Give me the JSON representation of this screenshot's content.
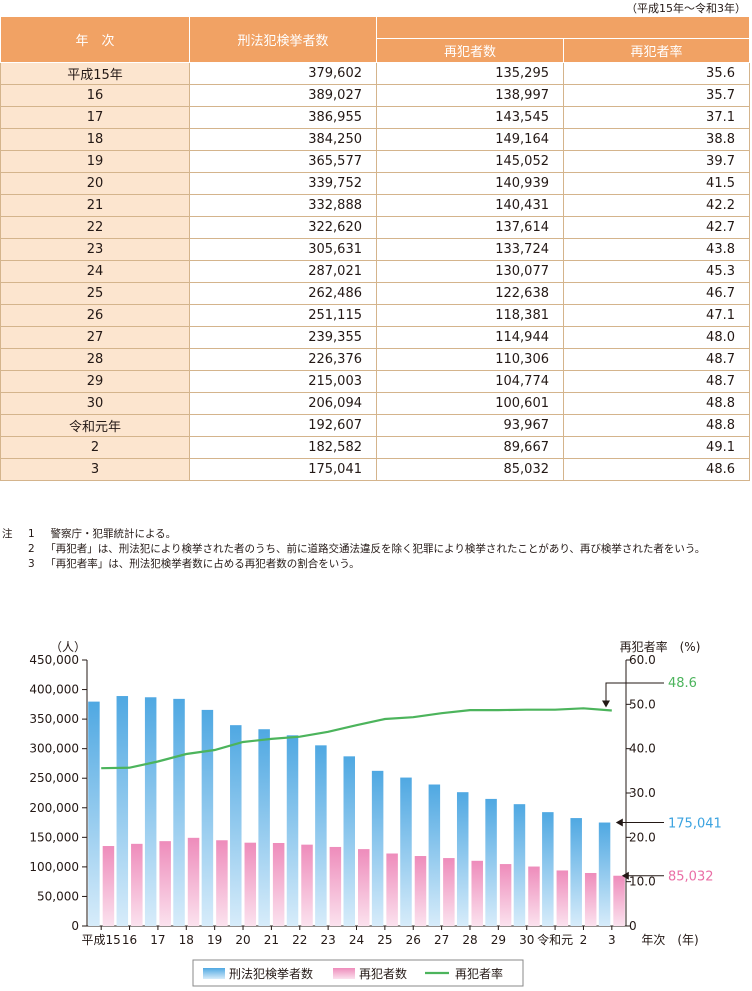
{
  "table": {
    "period_note": "（平成15年～令和3年）",
    "headers": {
      "year": "年　次",
      "arrests": "刑法犯検挙者数",
      "repeat": "再犯者数",
      "rate": "再犯者率"
    },
    "rows": [
      {
        "year": "平成15年",
        "arrests": "379,602",
        "repeat": "135,295",
        "rate": "35.6"
      },
      {
        "year": "16",
        "arrests": "389,027",
        "repeat": "138,997",
        "rate": "35.7"
      },
      {
        "year": "17",
        "arrests": "386,955",
        "repeat": "143,545",
        "rate": "37.1"
      },
      {
        "year": "18",
        "arrests": "384,250",
        "repeat": "149,164",
        "rate": "38.8"
      },
      {
        "year": "19",
        "arrests": "365,577",
        "repeat": "145,052",
        "rate": "39.7"
      },
      {
        "year": "20",
        "arrests": "339,752",
        "repeat": "140,939",
        "rate": "41.5"
      },
      {
        "year": "21",
        "arrests": "332,888",
        "repeat": "140,431",
        "rate": "42.2"
      },
      {
        "year": "22",
        "arrests": "322,620",
        "repeat": "137,614",
        "rate": "42.7"
      },
      {
        "year": "23",
        "arrests": "305,631",
        "repeat": "133,724",
        "rate": "43.8"
      },
      {
        "year": "24",
        "arrests": "287,021",
        "repeat": "130,077",
        "rate": "45.3"
      },
      {
        "year": "25",
        "arrests": "262,486",
        "repeat": "122,638",
        "rate": "46.7"
      },
      {
        "year": "26",
        "arrests": "251,115",
        "repeat": "118,381",
        "rate": "47.1"
      },
      {
        "year": "27",
        "arrests": "239,355",
        "repeat": "114,944",
        "rate": "48.0"
      },
      {
        "year": "28",
        "arrests": "226,376",
        "repeat": "110,306",
        "rate": "48.7"
      },
      {
        "year": "29",
        "arrests": "215,003",
        "repeat": "104,774",
        "rate": "48.7"
      },
      {
        "year": "30",
        "arrests": "206,094",
        "repeat": "100,601",
        "rate": "48.8"
      },
      {
        "year": "令和元年",
        "arrests": "192,607",
        "repeat": "93,967",
        "rate": "48.8"
      },
      {
        "year": "2",
        "arrests": "182,582",
        "repeat": "89,667",
        "rate": "49.1"
      },
      {
        "year": "3",
        "arrests": "175,041",
        "repeat": "85,032",
        "rate": "48.6"
      }
    ]
  },
  "notes": {
    "mark": "注",
    "items": [
      {
        "num": "1",
        "text": "警察庁・犯罪統計による。"
      },
      {
        "num": "2",
        "text": "「再犯者」は、刑法犯により検挙された者のうち、前に道路交通法違反を除く犯罪により検挙されたことがあり、再び検挙された者をいう。"
      },
      {
        "num": "3",
        "text": "「再犯者率」は、刑法犯検挙者数に占める再犯者数の割合をいう。"
      }
    ]
  },
  "chart_data": {
    "type": "bar",
    "categories": [
      "平成15",
      "16",
      "17",
      "18",
      "19",
      "20",
      "21",
      "22",
      "23",
      "24",
      "25",
      "26",
      "27",
      "28",
      "29",
      "30",
      "令和元",
      "2",
      "3"
    ],
    "series": [
      {
        "name": "刑法犯検挙者数",
        "kind": "bar",
        "axis": "left",
        "color": "#62b2e4",
        "values": [
          379602,
          389027,
          386955,
          384250,
          365577,
          339752,
          332888,
          322620,
          305631,
          287021,
          262486,
          251115,
          239355,
          226376,
          215003,
          206094,
          192607,
          182582,
          175041
        ]
      },
      {
        "name": "再犯者数",
        "kind": "bar",
        "axis": "left",
        "color": "#f2a0c4",
        "values": [
          135295,
          138997,
          143545,
          149164,
          145052,
          140939,
          140431,
          137614,
          133724,
          130077,
          122638,
          118381,
          114944,
          110306,
          104774,
          100601,
          93967,
          89667,
          85032
        ]
      },
      {
        "name": "再犯者率",
        "kind": "line",
        "axis": "right",
        "color": "#4cb45c",
        "values": [
          35.6,
          35.7,
          37.1,
          38.8,
          39.7,
          41.5,
          42.2,
          42.7,
          43.8,
          45.3,
          46.7,
          47.1,
          48.0,
          48.7,
          48.7,
          48.8,
          48.8,
          49.1,
          48.6
        ]
      }
    ],
    "left_axis": {
      "unit": "（人）",
      "ticks": [
        "0",
        "50,000",
        "100,000",
        "150,000",
        "200,000",
        "250,000",
        "300,000",
        "350,000",
        "400,000",
        "450,000"
      ],
      "ylim": [
        0,
        450000
      ]
    },
    "right_axis": {
      "title": "再犯者率　(%)",
      "ticks": [
        "0",
        "10.0",
        "20.0",
        "30.0",
        "40.0",
        "50.0",
        "60.0"
      ],
      "ylim": [
        0,
        60
      ]
    },
    "xlabel": "年次　(年)",
    "callouts": [
      {
        "series": "再犯者率",
        "label": "48.6",
        "color": "#4cb45c"
      },
      {
        "series": "刑法犯検挙者数",
        "label": "175,041",
        "color": "#3ba3e0"
      },
      {
        "series": "再犯者数",
        "label": "85,032",
        "color": "#ea6fa6"
      }
    ],
    "legend": {
      "position": "bottom"
    },
    "colors": {
      "axis": "#231815",
      "table_header": "#f1a264",
      "table_year_cell": "#fce5cf",
      "table_border": "#d4b48c"
    }
  }
}
